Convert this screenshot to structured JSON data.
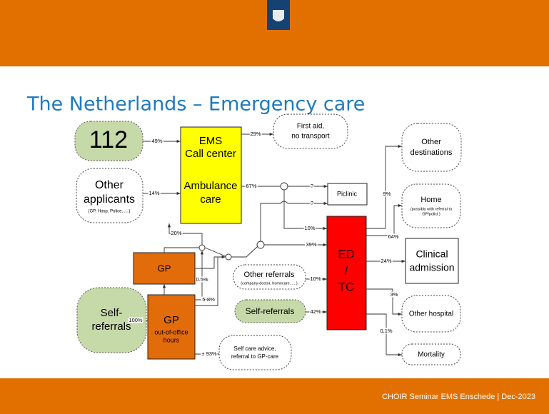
{
  "header": {
    "title": "The Netherlands – Emergency care"
  },
  "footer": "CHOIR Seminar EMS Enschede | Dec-2023",
  "nodes": {
    "n112": "112",
    "other_applicants": [
      "Other",
      "applicants",
      "(GP, Hosp, Police, ....)"
    ],
    "ems": [
      "EMS",
      "Call center",
      "Ambulance",
      "care"
    ],
    "first_aid": [
      "First aid,",
      "no transport"
    ],
    "piclinic": "Piclinic",
    "ed": [
      "ED",
      "/",
      "TC"
    ],
    "other_destinations": [
      "Other",
      "destinations"
    ],
    "home": [
      "Home",
      "(possibly with referral to",
      "GP/policl.)"
    ],
    "clinical": [
      "Clinical",
      "admission"
    ],
    "other_hospital": "Other hospital",
    "mortality": "Mortality",
    "gp": "GP",
    "gp_ooo": [
      "GP",
      "out-of-office",
      "hours"
    ],
    "self_referrals_left": [
      "Self-",
      "referrals"
    ],
    "other_referrals": [
      "Other referrals",
      "(company-doctor, homecare, ....)"
    ],
    "self_referrals": "Self-referrals",
    "self_care": [
      "Self care advice,",
      "referral to GP-care"
    ]
  },
  "edge_labels": [
    "49%",
    "14%",
    "29%",
    "67%",
    "?",
    "?",
    "10%",
    "39%",
    "9%",
    "64%",
    "24%",
    "3%",
    "0,1%",
    "10%",
    "42%",
    "100%",
    "± 93%",
    "20%",
    "0.5%",
    "5-8%"
  ]
}
